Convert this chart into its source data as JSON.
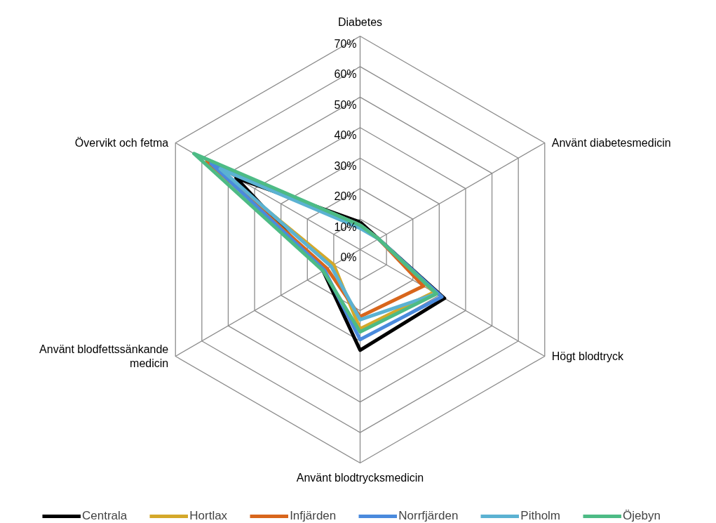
{
  "chart_data": {
    "type": "radar",
    "categories": [
      "Diabetes",
      "Använt diabetesmedicin",
      "Högt blodtryck",
      "Använt blodtrycksmedicin",
      "Använt blodfettssänkande medicin",
      "Övervikt och fetma"
    ],
    "ylim": [
      0,
      70
    ],
    "yticks": [
      {
        "value": 0,
        "label": "0%"
      },
      {
        "value": 10,
        "label": "10%"
      },
      {
        "value": 20,
        "label": "20%"
      },
      {
        "value": 30,
        "label": "30%"
      },
      {
        "value": 40,
        "label": "40%"
      },
      {
        "value": 50,
        "label": "50%"
      },
      {
        "value": 60,
        "label": "60%"
      },
      {
        "value": 70,
        "label": "70%"
      }
    ],
    "grid": true,
    "legend": "bottom",
    "series": [
      {
        "name": "Centrala",
        "color": "#000000",
        "values": [
          9,
          7,
          32,
          33,
          14,
          47
        ]
      },
      {
        "name": "Hortlax",
        "color": "#d4a82a",
        "values": [
          8,
          7,
          28,
          26,
          10,
          58
        ]
      },
      {
        "name": "Infjärden",
        "color": "#d8661c",
        "values": [
          8,
          7,
          24,
          22,
          12.5,
          58
        ]
      },
      {
        "name": "Norrfjärden",
        "color": "#4a8add",
        "values": [
          8,
          7,
          31,
          29.5,
          13.5,
          56.5
        ]
      },
      {
        "name": "Pitholm",
        "color": "#5bb2d2",
        "values": [
          7,
          7,
          29,
          23,
          11,
          53
        ]
      },
      {
        "name": "Öjebyn",
        "color": "#4dbb85",
        "values": [
          8,
          7,
          29,
          27,
          14,
          63
        ]
      }
    ]
  }
}
